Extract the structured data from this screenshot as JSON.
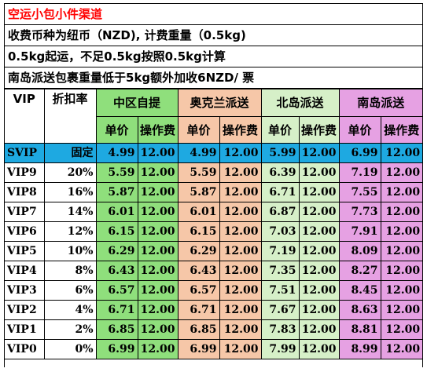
{
  "info": {
    "title": "空运小包小件渠道",
    "line1": "收费币种为纽币（NZD), 计费重量（0.5kg)",
    "line2": "0.5kg起运，不足0.5kg按照0.5kg计算",
    "line3": "南岛派送包裹重量低于5kg额外加收6NZD/ 票"
  },
  "colors": {
    "green": "#8fdf7c",
    "orange": "#f6c7a8",
    "light_green": "#d6f0c8",
    "pink": "#e6a1e3",
    "blue": "#1ea9e1",
    "title_red": "#ff0000"
  },
  "table": {
    "headers": {
      "vip": "VIP",
      "discount": "折扣率",
      "zone_central": "中区自提",
      "zone_auckland": "奥克兰派送",
      "zone_north": "北岛派送",
      "zone_south": "南岛派送",
      "unit_price": "单价",
      "handling_fee": "操作费"
    },
    "rows": [
      {
        "level": "SVIP",
        "discount": "固定",
        "central": "4.99",
        "central_fee": "12.00",
        "auckland": "4.99",
        "auckland_fee": "12.00",
        "north": "5.99",
        "north_fee": "12.00",
        "south": "6.99",
        "south_fee": "12.00"
      },
      {
        "level": "VIP9",
        "discount": "20%",
        "central": "5.59",
        "central_fee": "12.00",
        "auckland": "5.59",
        "auckland_fee": "12.00",
        "north": "6.39",
        "north_fee": "12.00",
        "south": "7.19",
        "south_fee": "12.00"
      },
      {
        "level": "VIP8",
        "discount": "16%",
        "central": "5.87",
        "central_fee": "12.00",
        "auckland": "5.87",
        "auckland_fee": "12.00",
        "north": "6.71",
        "north_fee": "12.00",
        "south": "7.55",
        "south_fee": "12.00"
      },
      {
        "level": "VIP7",
        "discount": "14%",
        "central": "6.01",
        "central_fee": "12.00",
        "auckland": "6.01",
        "auckland_fee": "12.00",
        "north": "6.87",
        "north_fee": "12.00",
        "south": "7.73",
        "south_fee": "12.00"
      },
      {
        "level": "VIP6",
        "discount": "12%",
        "central": "6.15",
        "central_fee": "12.00",
        "auckland": "6.15",
        "auckland_fee": "12.00",
        "north": "7.03",
        "north_fee": "12.00",
        "south": "7.91",
        "south_fee": "12.00"
      },
      {
        "level": "VIP5",
        "discount": "10%",
        "central": "6.29",
        "central_fee": "12.00",
        "auckland": "6.29",
        "auckland_fee": "12.00",
        "north": "7.19",
        "north_fee": "12.00",
        "south": "8.09",
        "south_fee": "12.00"
      },
      {
        "level": "VIP4",
        "discount": "8%",
        "central": "6.43",
        "central_fee": "12.00",
        "auckland": "6.43",
        "auckland_fee": "12.00",
        "north": "7.35",
        "north_fee": "12.00",
        "south": "8.27",
        "south_fee": "12.00"
      },
      {
        "level": "VIP3",
        "discount": "6%",
        "central": "6.57",
        "central_fee": "12.00",
        "auckland": "6.57",
        "auckland_fee": "12.00",
        "north": "7.51",
        "north_fee": "12.00",
        "south": "8.45",
        "south_fee": "12.00"
      },
      {
        "level": "VIP2",
        "discount": "4%",
        "central": "6.71",
        "central_fee": "12.00",
        "auckland": "6.71",
        "auckland_fee": "12.00",
        "north": "7.67",
        "north_fee": "12.00",
        "south": "8.63",
        "south_fee": "12.00"
      },
      {
        "level": "VIP1",
        "discount": "2%",
        "central": "6.85",
        "central_fee": "12.00",
        "auckland": "6.85",
        "auckland_fee": "12.00",
        "north": "7.83",
        "north_fee": "12.00",
        "south": "8.81",
        "south_fee": "12.00"
      },
      {
        "level": "VIP0",
        "discount": "0%",
        "central": "6.99",
        "central_fee": "12.00",
        "auckland": "6.99",
        "auckland_fee": "12.00",
        "north": "7.99",
        "north_fee": "12.00",
        "south": "8.99",
        "south_fee": "12.00"
      }
    ]
  }
}
